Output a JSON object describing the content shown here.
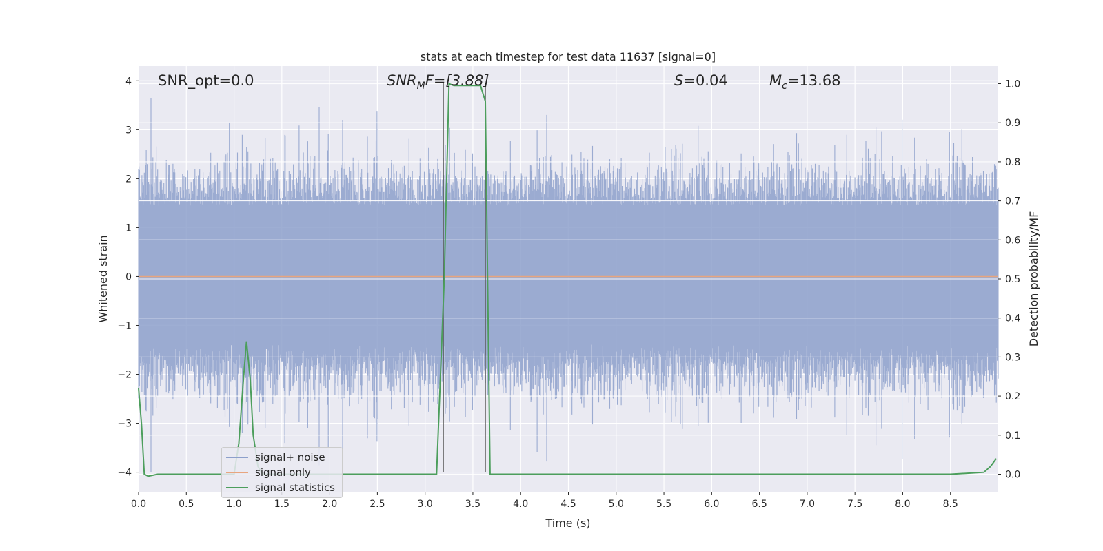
{
  "chart_data": {
    "type": "line",
    "title": "stats at each timestep for test data 11637 [signal=0]",
    "xlabel": "Time (s)",
    "ylabel": "Whitened strain",
    "y2label": "Detection probability/MF",
    "xlim": [
      0.0,
      9.0
    ],
    "ylim": [
      -4.4,
      4.3
    ],
    "y2lim": [
      -0.045,
      1.045
    ],
    "xticks": [
      "0.0",
      "0.5",
      "1.0",
      "1.5",
      "2.0",
      "2.5",
      "3.0",
      "3.5",
      "4.0",
      "4.5",
      "5.0",
      "5.5",
      "6.0",
      "6.5",
      "7.0",
      "7.5",
      "8.0",
      "8.5"
    ],
    "yticks": [
      "4",
      "3",
      "2",
      "1",
      "0",
      "−1",
      "−2",
      "−3",
      "−4"
    ],
    "yticks_values": [
      4,
      3,
      2,
      1,
      0,
      -1,
      -2,
      -3,
      -4
    ],
    "y2ticks": [
      "1.0",
      "0.9",
      "0.8",
      "0.7",
      "0.6",
      "0.5",
      "0.4",
      "0.3",
      "0.2",
      "0.1",
      "0.0"
    ],
    "y2ticks_values": [
      1.0,
      0.9,
      0.8,
      0.7,
      0.6,
      0.5,
      0.4,
      0.3,
      0.2,
      0.1,
      0.0
    ],
    "grid": true,
    "legend_position": "bottom-left",
    "annotations": {
      "snr_opt": "SNR_opt=0.0",
      "snr_mf_prefix": "SNR",
      "snr_mf_sub": "M",
      "snr_mf_suffix": "F=[3.88]",
      "s_prefix": "S",
      "s_suffix": "=0.04",
      "mc_prefix": "M",
      "mc_sub": "c",
      "mc_suffix": "=13.68"
    },
    "vertical_markers_x": [
      3.19,
      3.63
    ],
    "series": [
      {
        "name": "signal+ noise",
        "color": "#8da0cb",
        "description_kind": "noise",
        "envelope": {
          "typical_amplitude": 1.5,
          "max_peak": 3.9,
          "min_peak": -4.0,
          "sample_count": 1800
        }
      },
      {
        "name": "signal only",
        "color": "#e8a57f",
        "x": [
          0.0,
          9.0
        ],
        "y": [
          0.0,
          0.0
        ]
      },
      {
        "name": "signal statistics",
        "color": "#4c9e5c",
        "axis": "right",
        "x": [
          0.0,
          0.03,
          0.06,
          0.1,
          0.2,
          0.5,
          0.9,
          1.0,
          1.05,
          1.1,
          1.13,
          1.17,
          1.2,
          1.25,
          1.3,
          1.5,
          2.0,
          2.5,
          3.0,
          3.12,
          3.2,
          3.25,
          3.3,
          3.5,
          3.58,
          3.63,
          3.68,
          3.75,
          4.0,
          5.0,
          6.0,
          7.0,
          8.0,
          8.5,
          8.85,
          8.92,
          8.98
        ],
        "y": [
          0.22,
          0.13,
          0.0,
          -0.005,
          0.0,
          0.0,
          0.0,
          0.0,
          0.08,
          0.25,
          0.34,
          0.24,
          0.1,
          0.02,
          0.0,
          0.0,
          0.0,
          0.0,
          0.0,
          0.0,
          0.5,
          1.0,
          0.995,
          0.995,
          0.995,
          0.955,
          0.0,
          0.0,
          0.0,
          0.0,
          0.0,
          0.0,
          0.0,
          0.0,
          0.005,
          0.02,
          0.04
        ]
      }
    ]
  }
}
